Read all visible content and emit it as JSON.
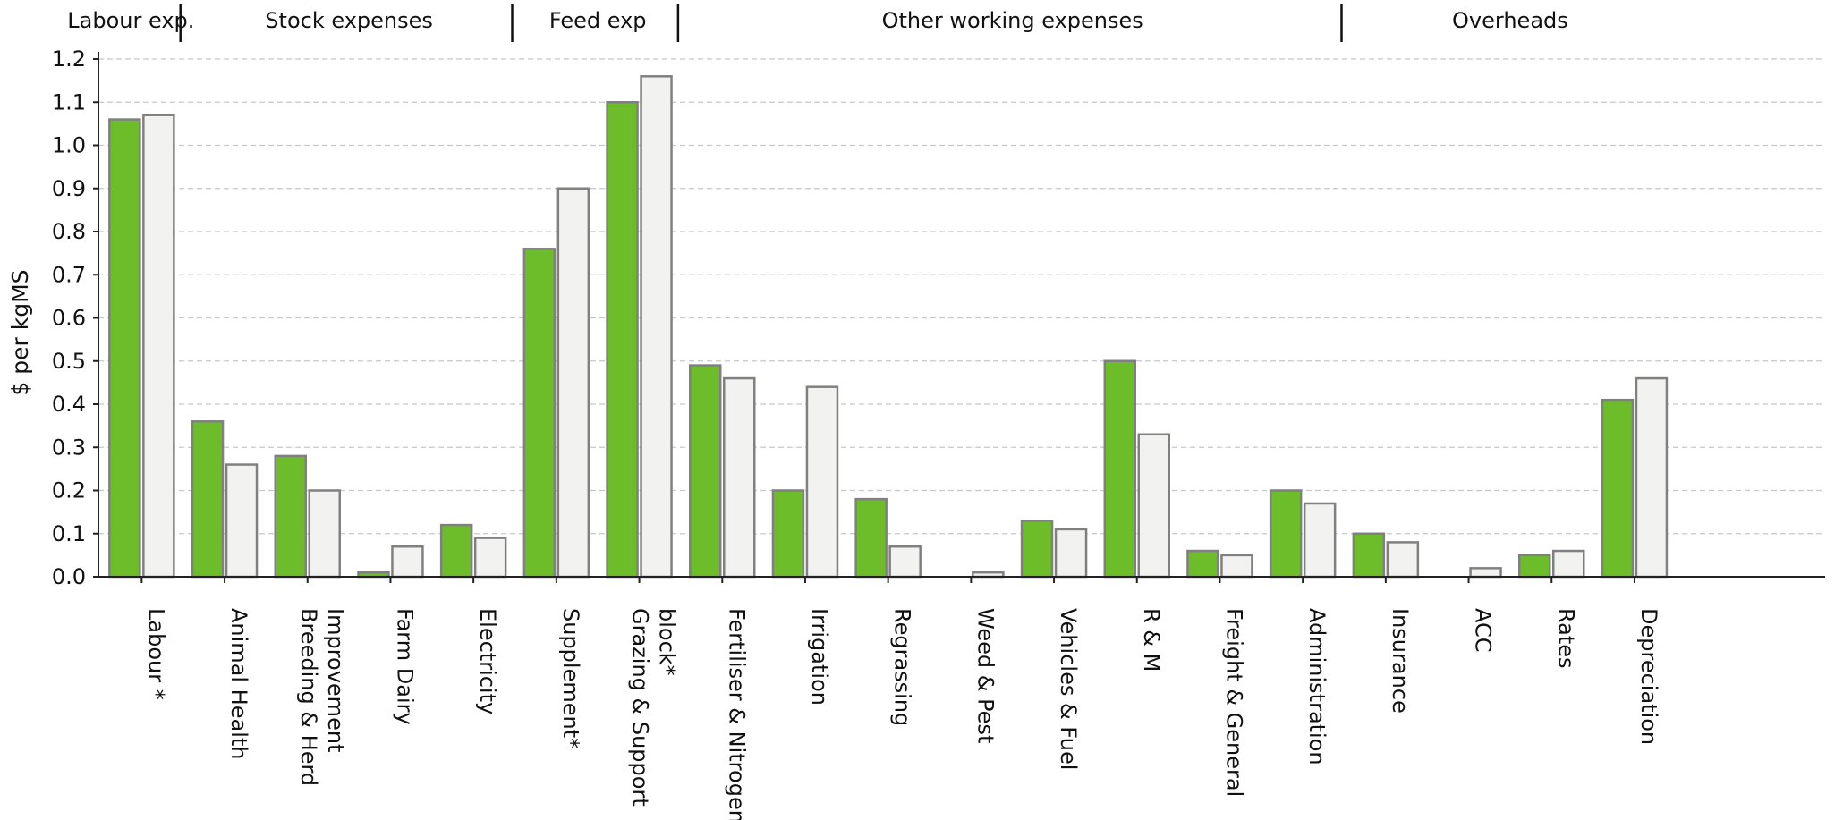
{
  "chart_data": {
    "type": "bar",
    "ylabel": "$ per kgMS",
    "ylim": [
      0,
      1.2
    ],
    "yticks": [
      "0.0",
      "0.1",
      "0.2",
      "0.3",
      "0.4",
      "0.5",
      "0.6",
      "0.7",
      "0.8",
      "0.9",
      "1.0",
      "1.1",
      "1.2"
    ],
    "grid": true,
    "categories": [
      "Labour *",
      "Animal Health",
      "Breeding & Herd Improvement",
      "Farm Dairy",
      "Electricity",
      "Supplement*",
      "Grazing & Support block*",
      "Fertiliser & Nitrogen",
      "Irrigation",
      "Regrassing",
      "Weed & Pest",
      "Vehicles & Fuel",
      "R & M",
      "Freight & General",
      "Administration",
      "Insurance",
      "ACC",
      "Rates",
      "Depreciation"
    ],
    "category_lines": [
      [
        "Labour *"
      ],
      [
        "Animal Health"
      ],
      [
        "Breeding & Herd",
        "Improvement"
      ],
      [
        "Farm Dairy"
      ],
      [
        "Electricity"
      ],
      [
        "Supplement*"
      ],
      [
        "Grazing & Support",
        "block*"
      ],
      [
        "Fertiliser & Nitrogen"
      ],
      [
        "Irrigation"
      ],
      [
        "Regrassing"
      ],
      [
        "Weed & Pest"
      ],
      [
        "Vehicles & Fuel"
      ],
      [
        "R & M"
      ],
      [
        "Freight & General"
      ],
      [
        "Administration"
      ],
      [
        "Insurance"
      ],
      [
        "ACC"
      ],
      [
        "Rates"
      ],
      [
        "Depreciation"
      ]
    ],
    "series": [
      {
        "color": "#6dbd2a",
        "values": [
          1.06,
          0.36,
          0.28,
          0.01,
          0.12,
          0.76,
          1.1,
          0.49,
          0.2,
          0.18,
          0.0,
          0.13,
          0.5,
          0.06,
          0.2,
          0.1,
          0.0,
          0.05,
          0.41
        ]
      },
      {
        "color": "#f2f3f0",
        "values": [
          1.07,
          0.26,
          0.2,
          0.07,
          0.09,
          0.9,
          1.16,
          0.46,
          0.44,
          0.07,
          0.01,
          0.11,
          0.33,
          0.05,
          0.17,
          0.08,
          0.02,
          0.06,
          0.46
        ]
      }
    ],
    "groups": [
      {
        "label": "Labour exp.",
        "start": 0,
        "end": 0
      },
      {
        "label": "Stock expenses",
        "start": 1,
        "end": 4
      },
      {
        "label": "Feed exp",
        "start": 5,
        "end": 6
      },
      {
        "label": "Other working expenses",
        "start": 7,
        "end": 14
      },
      {
        "label": "Overheads",
        "start": 15,
        "end": 18
      }
    ]
  }
}
